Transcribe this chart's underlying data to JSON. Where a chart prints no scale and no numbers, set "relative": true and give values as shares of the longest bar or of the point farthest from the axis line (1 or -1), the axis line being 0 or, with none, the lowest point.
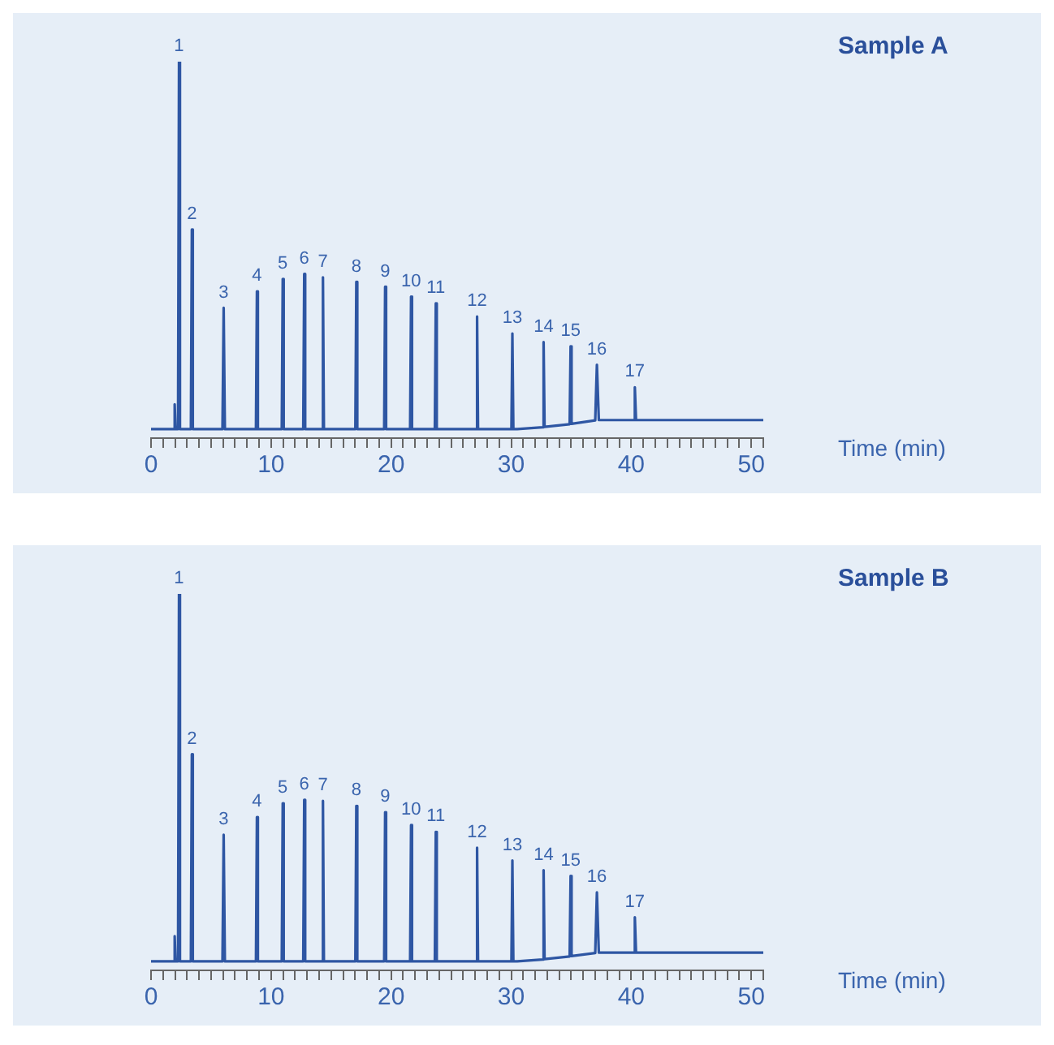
{
  "chart_data": [
    {
      "type": "line",
      "xlabel": "Time (min)",
      "relative": true,
      "legend": false,
      "marker": "none",
      "xlim": [
        0,
        51
      ],
      "xticks": [
        0,
        {
          "value": 1,
          "label": null
        },
        {
          "value": 2,
          "label": null
        },
        {
          "value": 3,
          "label": null
        },
        {
          "value": 4,
          "label": null
        },
        {
          "value": 5,
          "label": null
        },
        {
          "value": 6,
          "label": null
        },
        {
          "value": 7,
          "label": null
        },
        {
          "value": 8,
          "label": null
        },
        {
          "value": 9,
          "label": null
        },
        10,
        {
          "value": 11,
          "label": null
        },
        {
          "value": 12,
          "label": null
        },
        {
          "value": 13,
          "label": null
        },
        {
          "value": 14,
          "label": null
        },
        {
          "value": 15,
          "label": null
        },
        {
          "value": 16,
          "label": null
        },
        {
          "value": 17,
          "label": null
        },
        {
          "value": 18,
          "label": null
        },
        {
          "value": 19,
          "label": null
        },
        20,
        {
          "value": 21,
          "label": null
        },
        {
          "value": 22,
          "label": null
        },
        {
          "value": 23,
          "label": null
        },
        {
          "value": 24,
          "label": null
        },
        {
          "value": 25,
          "label": null
        },
        {
          "value": 26,
          "label": null
        },
        {
          "value": 27,
          "label": null
        },
        {
          "value": 28,
          "label": null
        },
        {
          "value": 29,
          "label": null
        },
        30,
        {
          "value": 31,
          "label": null
        },
        {
          "value": 32,
          "label": null
        },
        {
          "value": 33,
          "label": null
        },
        {
          "value": 34,
          "label": null
        },
        {
          "value": 35,
          "label": null
        },
        {
          "value": 36,
          "label": null
        },
        {
          "value": 37,
          "label": null
        },
        {
          "value": 38,
          "label": null
        },
        {
          "value": 39,
          "label": null
        },
        40,
        {
          "value": 41,
          "label": null
        },
        {
          "value": 42,
          "label": null
        },
        {
          "value": 43,
          "label": null
        },
        {
          "value": 44,
          "label": null
        },
        {
          "value": 45,
          "label": null
        },
        {
          "value": 46,
          "label": null
        },
        {
          "value": 47,
          "label": null
        },
        {
          "value": 48,
          "label": null
        },
        {
          "value": 49,
          "label": null
        },
        50,
        {
          "value": 51,
          "label": null
        }
      ],
      "series": [
        {
          "color": "#2e56a3",
          "x": [
            0,
            1.9,
            1.97,
            2.04,
            2.25,
            2.33,
            2.41,
            3.32,
            3.4,
            3.48,
            5.95,
            6.05,
            6.15,
            8.74,
            8.82,
            8.9,
            10.89,
            10.97,
            11.05,
            12.68,
            12.76,
            12.84,
            14.24,
            14.32,
            14.4,
            17.02,
            17.1,
            17.18,
            19.42,
            19.5,
            19.58,
            21.58,
            21.66,
            21.74,
            23.64,
            23.72,
            23.8,
            27.08,
            27.16,
            27.24,
            30.02,
            30.1,
            30.18,
            30.5,
            32.62,
            32.7,
            32.78,
            34.87,
            34.95,
            35.03,
            37.0,
            37.14,
            37.3,
            40.2,
            40.3,
            40.4,
            51
          ],
          "values": [
            0.024,
            0.024,
            0.09,
            0.024,
            0.024,
            1,
            0.024,
            0.024,
            0.554,
            0.024,
            0.024,
            0.346,
            0.024,
            0.024,
            0.39,
            0.024,
            0.024,
            0.423,
            0.024,
            0.024,
            0.436,
            0.024,
            0.024,
            0.427,
            0.024,
            0.024,
            0.415,
            0.024,
            0.024,
            0.402,
            0.024,
            0.024,
            0.376,
            0.024,
            0.024,
            0.358,
            0.024,
            0.024,
            0.323,
            0.024,
            0.024,
            0.278,
            0.024,
            0.024,
            0.029,
            0.255,
            0.03,
            0.037,
            0.244,
            0.038,
            0.047,
            0.195,
            0.048,
            0.048,
            0.135,
            0.048,
            0.048
          ]
        }
      ],
      "annotations": [
        "Sample A",
        {
          "text": "1",
          "x": 2.33,
          "y": 1
        },
        {
          "text": "2",
          "x": 3.4,
          "y": 0.554
        },
        {
          "text": "3",
          "x": 6.05,
          "y": 0.346
        },
        {
          "text": "4",
          "x": 8.82,
          "y": 0.39
        },
        {
          "text": "5",
          "x": 10.97,
          "y": 0.423
        },
        {
          "text": "6",
          "x": 12.76,
          "y": 0.436
        },
        {
          "text": "7",
          "x": 14.32,
          "y": 0.427
        },
        {
          "text": "8",
          "x": 17.1,
          "y": 0.415
        },
        {
          "text": "9",
          "x": 19.5,
          "y": 0.402
        },
        {
          "text": "10",
          "x": 21.66,
          "y": 0.376
        },
        {
          "text": "11",
          "x": 23.72,
          "y": 0.358
        },
        {
          "text": "12",
          "x": 27.16,
          "y": 0.323
        },
        {
          "text": "13",
          "x": 30.1,
          "y": 0.278
        },
        {
          "text": "14",
          "x": 32.7,
          "y": 0.255
        },
        {
          "text": "15",
          "x": 34.95,
          "y": 0.244
        },
        {
          "text": "16",
          "x": 37.14,
          "y": 0.195
        },
        {
          "text": "17",
          "x": 40.3,
          "y": 0.135
        }
      ]
    },
    {
      "type": "line",
      "xlabel": "Time (min)",
      "relative": true,
      "legend": false,
      "marker": "none",
      "xlim": [
        0,
        51
      ],
      "xticks": [
        0,
        {
          "value": 1,
          "label": null
        },
        {
          "value": 2,
          "label": null
        },
        {
          "value": 3,
          "label": null
        },
        {
          "value": 4,
          "label": null
        },
        {
          "value": 5,
          "label": null
        },
        {
          "value": 6,
          "label": null
        },
        {
          "value": 7,
          "label": null
        },
        {
          "value": 8,
          "label": null
        },
        {
          "value": 9,
          "label": null
        },
        10,
        {
          "value": 11,
          "label": null
        },
        {
          "value": 12,
          "label": null
        },
        {
          "value": 13,
          "label": null
        },
        {
          "value": 14,
          "label": null
        },
        {
          "value": 15,
          "label": null
        },
        {
          "value": 16,
          "label": null
        },
        {
          "value": 17,
          "label": null
        },
        {
          "value": 18,
          "label": null
        },
        {
          "value": 19,
          "label": null
        },
        20,
        {
          "value": 21,
          "label": null
        },
        {
          "value": 22,
          "label": null
        },
        {
          "value": 23,
          "label": null
        },
        {
          "value": 24,
          "label": null
        },
        {
          "value": 25,
          "label": null
        },
        {
          "value": 26,
          "label": null
        },
        {
          "value": 27,
          "label": null
        },
        {
          "value": 28,
          "label": null
        },
        {
          "value": 29,
          "label": null
        },
        30,
        {
          "value": 31,
          "label": null
        },
        {
          "value": 32,
          "label": null
        },
        {
          "value": 33,
          "label": null
        },
        {
          "value": 34,
          "label": null
        },
        {
          "value": 35,
          "label": null
        },
        {
          "value": 36,
          "label": null
        },
        {
          "value": 37,
          "label": null
        },
        {
          "value": 38,
          "label": null
        },
        {
          "value": 39,
          "label": null
        },
        40,
        {
          "value": 41,
          "label": null
        },
        {
          "value": 42,
          "label": null
        },
        {
          "value": 43,
          "label": null
        },
        {
          "value": 44,
          "label": null
        },
        {
          "value": 45,
          "label": null
        },
        {
          "value": 46,
          "label": null
        },
        {
          "value": 47,
          "label": null
        },
        {
          "value": 48,
          "label": null
        },
        {
          "value": 49,
          "label": null
        },
        50,
        {
          "value": 51,
          "label": null
        }
      ],
      "series": [
        {
          "color": "#2e56a3",
          "x": [
            0,
            1.9,
            1.97,
            2.04,
            2.25,
            2.33,
            2.41,
            3.32,
            3.4,
            3.48,
            5.95,
            6.05,
            6.15,
            8.74,
            8.82,
            8.9,
            10.89,
            10.97,
            11.05,
            12.68,
            12.76,
            12.84,
            14.24,
            14.32,
            14.4,
            17.02,
            17.1,
            17.18,
            19.42,
            19.5,
            19.58,
            21.58,
            21.66,
            21.74,
            23.64,
            23.72,
            23.8,
            27.08,
            27.16,
            27.24,
            30.02,
            30.1,
            30.18,
            30.5,
            32.62,
            32.7,
            32.78,
            34.87,
            34.95,
            35.03,
            37.0,
            37.14,
            37.3,
            40.2,
            40.3,
            40.4,
            51
          ],
          "values": [
            0.024,
            0.024,
            0.091,
            0.024,
            0.024,
            1,
            0.024,
            0.024,
            0.574,
            0.024,
            0.024,
            0.36,
            0.024,
            0.024,
            0.407,
            0.024,
            0.024,
            0.444,
            0.024,
            0.024,
            0.453,
            0.024,
            0.024,
            0.45,
            0.024,
            0.024,
            0.437,
            0.024,
            0.024,
            0.42,
            0.024,
            0.024,
            0.386,
            0.024,
            0.024,
            0.368,
            0.024,
            0.024,
            0.326,
            0.024,
            0.024,
            0.292,
            0.024,
            0.024,
            0.029,
            0.266,
            0.03,
            0.037,
            0.251,
            0.038,
            0.046,
            0.207,
            0.047,
            0.047,
            0.141,
            0.047,
            0.047
          ]
        }
      ],
      "annotations": [
        "Sample B",
        {
          "text": "1",
          "x": 2.33,
          "y": 1
        },
        {
          "text": "2",
          "x": 3.4,
          "y": 0.574
        },
        {
          "text": "3",
          "x": 6.05,
          "y": 0.36
        },
        {
          "text": "4",
          "x": 8.82,
          "y": 0.407
        },
        {
          "text": "5",
          "x": 10.97,
          "y": 0.444
        },
        {
          "text": "6",
          "x": 12.76,
          "y": 0.453
        },
        {
          "text": "7",
          "x": 14.32,
          "y": 0.45
        },
        {
          "text": "8",
          "x": 17.1,
          "y": 0.437
        },
        {
          "text": "9",
          "x": 19.5,
          "y": 0.42
        },
        {
          "text": "10",
          "x": 21.66,
          "y": 0.386
        },
        {
          "text": "11",
          "x": 23.72,
          "y": 0.368
        },
        {
          "text": "12",
          "x": 27.16,
          "y": 0.326
        },
        {
          "text": "13",
          "x": 30.1,
          "y": 0.292
        },
        {
          "text": "14",
          "x": 32.7,
          "y": 0.266
        },
        {
          "text": "15",
          "x": 34.95,
          "y": 0.251
        },
        {
          "text": "16",
          "x": 37.14,
          "y": 0.207
        },
        {
          "text": "17",
          "x": 40.3,
          "y": 0.141
        }
      ]
    }
  ]
}
